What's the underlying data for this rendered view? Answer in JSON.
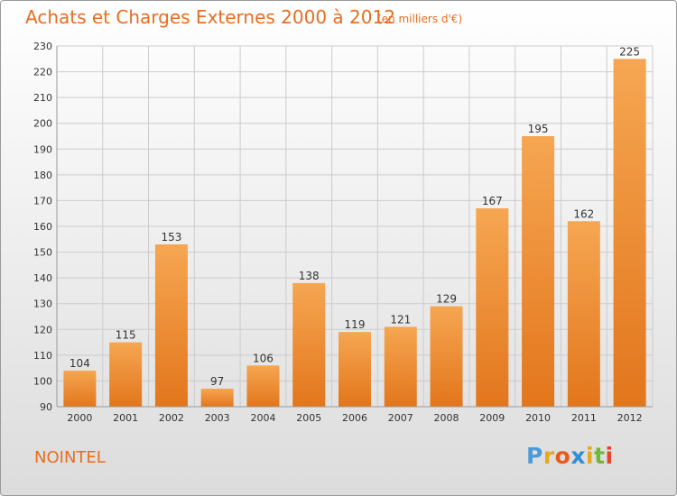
{
  "header": {
    "title": "Achats et Charges Externes 2000 à 2012",
    "unit": "(en milliers d'€)"
  },
  "footer": {
    "city": "NOINTEL",
    "logo_text": "Proxiti"
  },
  "colors": {
    "accent": "#e86d1f",
    "bar_top": "#f6a652",
    "bar_bottom": "#e2761c",
    "grid": "#cccccc",
    "axis_text": "#333333",
    "logo_letters": [
      "#4a9bd8",
      "#e5a823",
      "#e85a1a",
      "#2f8fd4",
      "#e5a823",
      "#6fb83a",
      "#e8442a"
    ]
  },
  "chart_data": {
    "type": "bar",
    "title": "Achats et Charges Externes 2000 à 2012",
    "subtitle": "(en milliers d'€)",
    "xlabel": "",
    "ylabel": "",
    "categories": [
      "2000",
      "2001",
      "2002",
      "2003",
      "2004",
      "2005",
      "2006",
      "2007",
      "2008",
      "2009",
      "2010",
      "2011",
      "2012"
    ],
    "values": [
      104,
      115,
      153,
      97,
      106,
      138,
      119,
      121,
      129,
      167,
      195,
      162,
      225
    ],
    "ylim": [
      90,
      230
    ],
    "yticks": [
      90,
      100,
      110,
      120,
      130,
      140,
      150,
      160,
      170,
      180,
      190,
      200,
      210,
      220,
      230
    ],
    "grid": true,
    "data_labels": true
  }
}
